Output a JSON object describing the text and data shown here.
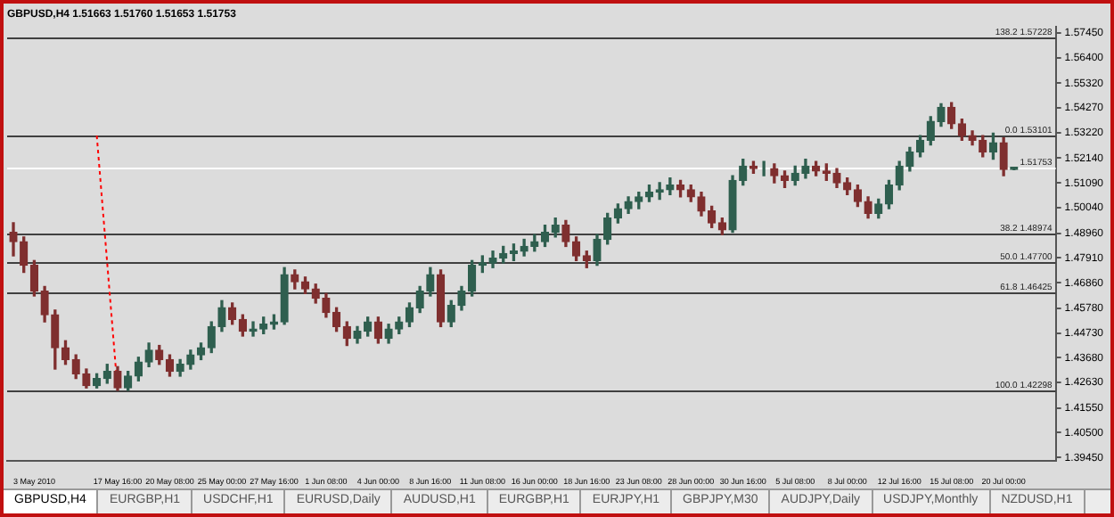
{
  "chart_data": {
    "type": "candlestick",
    "title": "GBPUSD,H4 1.51663 1.51760 1.51653 1.51753",
    "categories": [
      null,
      null,
      "3 May 2010",
      null,
      null,
      null,
      null,
      null,
      null,
      null,
      "17 May 16:00",
      null,
      null,
      null,
      null,
      "20 May 08:00",
      null,
      null,
      null,
      null,
      "25 May 00:00",
      null,
      null,
      null,
      null,
      "27 May 16:00",
      null,
      null,
      null,
      null,
      "1 Jun 08:00",
      null,
      null,
      null,
      null,
      "4 Jun 00:00",
      null,
      null,
      null,
      null,
      "8 Jun 16:00",
      null,
      null,
      null,
      null,
      "11 Jun 08:00",
      null,
      null,
      null,
      null,
      "16 Jun 00:00",
      null,
      null,
      null,
      null,
      "18 Jun 16:00",
      null,
      null,
      null,
      null,
      "23 Jun 08:00",
      null,
      null,
      null,
      null,
      "28 Jun 00:00",
      null,
      null,
      null,
      null,
      "30 Jun 16:00",
      null,
      null,
      null,
      null,
      "5 Jul 08:00",
      null,
      null,
      null,
      null,
      "8 Jul 00:00",
      null,
      null,
      null,
      null,
      "12 Jul 16:00",
      null,
      null,
      null,
      null,
      "15 Jul 08:00",
      null,
      null,
      null,
      null,
      "20 Jul 00:00",
      null
    ],
    "ohlc": [
      [
        1.49,
        1.494,
        1.48,
        1.486
      ],
      [
        1.486,
        1.488,
        1.473,
        1.476
      ],
      [
        1.476,
        1.478,
        1.463,
        1.465
      ],
      [
        1.465,
        1.467,
        1.452,
        1.455
      ],
      [
        1.455,
        1.457,
        1.432,
        1.441
      ],
      [
        1.441,
        1.444,
        1.434,
        1.436
      ],
      [
        1.436,
        1.438,
        1.428,
        1.43
      ],
      [
        1.43,
        1.432,
        1.424,
        1.425
      ],
      [
        1.425,
        1.43,
        1.424,
        1.428
      ],
      [
        1.428,
        1.434,
        1.426,
        1.431
      ],
      [
        1.431,
        1.433,
        1.423,
        1.424
      ],
      [
        1.424,
        1.431,
        1.423,
        1.429
      ],
      [
        1.429,
        1.437,
        1.427,
        1.435
      ],
      [
        1.435,
        1.443,
        1.433,
        1.44
      ],
      [
        1.44,
        1.442,
        1.434,
        1.436
      ],
      [
        1.436,
        1.438,
        1.429,
        1.431
      ],
      [
        1.431,
        1.436,
        1.429,
        1.434
      ],
      [
        1.434,
        1.44,
        1.432,
        1.438
      ],
      [
        1.438,
        1.443,
        1.436,
        1.441
      ],
      [
        1.441,
        1.452,
        1.439,
        1.45
      ],
      [
        1.45,
        1.461,
        1.448,
        1.458
      ],
      [
        1.458,
        1.46,
        1.451,
        1.453
      ],
      [
        1.453,
        1.455,
        1.446,
        1.448
      ],
      [
        1.448,
        1.452,
        1.446,
        1.449
      ],
      [
        1.449,
        1.454,
        1.447,
        1.451
      ],
      [
        1.451,
        1.455,
        1.449,
        1.452
      ],
      [
        1.452,
        1.475,
        1.451,
        1.472
      ],
      [
        1.472,
        1.474,
        1.466,
        1.469
      ],
      [
        1.469,
        1.471,
        1.464,
        1.466
      ],
      [
        1.466,
        1.468,
        1.46,
        1.462
      ],
      [
        1.462,
        1.464,
        1.454,
        1.456
      ],
      [
        1.456,
        1.458,
        1.448,
        1.45
      ],
      [
        1.45,
        1.452,
        1.442,
        1.445
      ],
      [
        1.445,
        1.45,
        1.443,
        1.448
      ],
      [
        1.448,
        1.454,
        1.446,
        1.452
      ],
      [
        1.452,
        1.454,
        1.443,
        1.445
      ],
      [
        1.445,
        1.451,
        1.443,
        1.449
      ],
      [
        1.449,
        1.454,
        1.447,
        1.452
      ],
      [
        1.452,
        1.46,
        1.45,
        1.458
      ],
      [
        1.458,
        1.467,
        1.456,
        1.465
      ],
      [
        1.465,
        1.475,
        1.463,
        1.472
      ],
      [
        1.472,
        1.474,
        1.45,
        1.452
      ],
      [
        1.452,
        1.461,
        1.45,
        1.459
      ],
      [
        1.459,
        1.467,
        1.457,
        1.465
      ],
      [
        1.465,
        1.478,
        1.463,
        1.476
      ],
      [
        1.476,
        1.48,
        1.473,
        1.477
      ],
      [
        1.477,
        1.482,
        1.475,
        1.479
      ],
      [
        1.479,
        1.484,
        1.477,
        1.481
      ],
      [
        1.481,
        1.485,
        1.478,
        1.482
      ],
      [
        1.482,
        1.487,
        1.48,
        1.484
      ],
      [
        1.484,
        1.489,
        1.482,
        1.486
      ],
      [
        1.486,
        1.493,
        1.484,
        1.49
      ],
      [
        1.49,
        1.496,
        1.488,
        1.493
      ],
      [
        1.493,
        1.495,
        1.484,
        1.486
      ],
      [
        1.486,
        1.488,
        1.478,
        1.48
      ],
      [
        1.48,
        1.482,
        1.475,
        1.478
      ],
      [
        1.478,
        1.489,
        1.476,
        1.487
      ],
      [
        1.487,
        1.498,
        1.485,
        1.496
      ],
      [
        1.496,
        1.502,
        1.494,
        1.5
      ],
      [
        1.5,
        1.505,
        1.498,
        1.503
      ],
      [
        1.503,
        1.507,
        1.5,
        1.505
      ],
      [
        1.505,
        1.51,
        1.503,
        1.507
      ],
      [
        1.507,
        1.511,
        1.504,
        1.508
      ],
      [
        1.508,
        1.513,
        1.506,
        1.51
      ],
      [
        1.51,
        1.512,
        1.505,
        1.508
      ],
      [
        1.508,
        1.51,
        1.503,
        1.505
      ],
      [
        1.505,
        1.507,
        1.497,
        1.499
      ],
      [
        1.499,
        1.501,
        1.492,
        1.494
      ],
      [
        1.494,
        1.496,
        1.489,
        1.491
      ],
      [
        1.491,
        1.514,
        1.49,
        1.512
      ],
      [
        1.512,
        1.521,
        1.51,
        1.518
      ],
      [
        1.518,
        1.52,
        1.515,
        1.517
      ],
      [
        1.517,
        1.52,
        1.514,
        1.517
      ],
      [
        1.517,
        1.519,
        1.511,
        1.514
      ],
      [
        1.514,
        1.516,
        1.509,
        1.512
      ],
      [
        1.512,
        1.518,
        1.51,
        1.515
      ],
      [
        1.515,
        1.521,
        1.513,
        1.518
      ],
      [
        1.518,
        1.52,
        1.514,
        1.516
      ],
      [
        1.516,
        1.519,
        1.512,
        1.515
      ],
      [
        1.515,
        1.517,
        1.509,
        1.511
      ],
      [
        1.511,
        1.513,
        1.506,
        1.508
      ],
      [
        1.508,
        1.51,
        1.501,
        1.503
      ],
      [
        1.503,
        1.505,
        1.496,
        1.498
      ],
      [
        1.498,
        1.504,
        1.496,
        1.502
      ],
      [
        1.502,
        1.512,
        1.5,
        1.51
      ],
      [
        1.51,
        1.52,
        1.508,
        1.518
      ],
      [
        1.518,
        1.526,
        1.516,
        1.524
      ],
      [
        1.524,
        1.531,
        1.522,
        1.529
      ],
      [
        1.529,
        1.539,
        1.527,
        1.537
      ],
      [
        1.537,
        1.5445,
        1.535,
        1.543
      ],
      [
        1.543,
        1.545,
        1.534,
        1.536
      ],
      [
        1.536,
        1.538,
        1.529,
        1.531
      ],
      [
        1.531,
        1.533,
        1.527,
        1.529
      ],
      [
        1.529,
        1.531,
        1.522,
        1.524
      ],
      [
        1.524,
        1.532,
        1.521,
        1.528
      ],
      [
        1.528,
        1.53,
        1.514,
        1.5166
      ],
      [
        1.51663,
        1.5176,
        1.51653,
        1.51753
      ]
    ],
    "colors": [
      "#7f2f2f",
      "#7f2f2f",
      "#7f2f2f",
      "#7f2f2f",
      "#7f2f2f",
      "#7f2f2f",
      "#7f2f2f",
      "#7f2f2f",
      "#2f5f4f",
      "#2f5f4f",
      "#7f2f2f",
      "#2f5f4f",
      "#2f5f4f",
      "#2f5f4f",
      "#7f2f2f",
      "#7f2f2f",
      "#2f5f4f",
      "#2f5f4f",
      "#2f5f4f",
      "#2f5f4f",
      "#2f5f4f",
      "#7f2f2f",
      "#7f2f2f",
      "#2f5f4f",
      "#2f5f4f",
      "#2f5f4f",
      "#2f5f4f",
      "#7f2f2f",
      "#7f2f2f",
      "#7f2f2f",
      "#7f2f2f",
      "#7f2f2f",
      "#7f2f2f",
      "#2f5f4f",
      "#2f5f4f",
      "#7f2f2f",
      "#2f5f4f",
      "#2f5f4f",
      "#2f5f4f",
      "#2f5f4f",
      "#2f5f4f",
      "#7f2f2f",
      "#2f5f4f",
      "#2f5f4f",
      "#2f5f4f",
      "#2f5f4f",
      "#2f5f4f",
      "#2f5f4f",
      "#2f5f4f",
      "#2f5f4f",
      "#2f5f4f",
      "#2f5f4f",
      "#2f5f4f",
      "#7f2f2f",
      "#7f2f2f",
      "#7f2f2f",
      "#2f5f4f",
      "#2f5f4f",
      "#2f5f4f",
      "#2f5f4f",
      "#2f5f4f",
      "#2f5f4f",
      "#2f5f4f",
      "#2f5f4f",
      "#7f2f2f",
      "#7f2f2f",
      "#7f2f2f",
      "#7f2f2f",
      "#7f2f2f",
      "#2f5f4f",
      "#2f5f4f",
      "#7f2f2f",
      "#2f5f4f",
      "#7f2f2f",
      "#7f2f2f",
      "#2f5f4f",
      "#2f5f4f",
      "#7f2f2f",
      "#7f2f2f",
      "#7f2f2f",
      "#7f2f2f",
      "#7f2f2f",
      "#7f2f2f",
      "#2f5f4f",
      "#2f5f4f",
      "#2f5f4f",
      "#2f5f4f",
      "#2f5f4f",
      "#2f5f4f",
      "#2f5f4f",
      "#7f2f2f",
      "#7f2f2f",
      "#7f2f2f",
      "#7f2f2f",
      "#2f5f4f",
      "#7f2f2f",
      "#2f5f4f"
    ],
    "series": [
      {
        "type": "line",
        "color": "#ff0000",
        "line_style": "dotted",
        "values": [
          null,
          null,
          null,
          null,
          null,
          null,
          null,
          null,
          1.531,
          null,
          1.423,
          null,
          null,
          null,
          null,
          null,
          null,
          null,
          null,
          null,
          null,
          null,
          null,
          null,
          null,
          null,
          null,
          null,
          null,
          null,
          null,
          null,
          null,
          null,
          null,
          null,
          null,
          null,
          null,
          null,
          null,
          null,
          null,
          null,
          null,
          null,
          null,
          null,
          null,
          null,
          null,
          null,
          null,
          null,
          null,
          null,
          null,
          null,
          null,
          null,
          null,
          null,
          null,
          null,
          null,
          null,
          null,
          null,
          null,
          null,
          null,
          null,
          null,
          null,
          null,
          null,
          null,
          null,
          null,
          null,
          null,
          null,
          null,
          null,
          null,
          null,
          null,
          null,
          null,
          null,
          null,
          null,
          null,
          null,
          null,
          null,
          null
        ]
      }
    ],
    "ylim": [
      1.393,
      1.577
    ],
    "yticks": [
      {
        "value": 1.5745,
        "label": "1.57450"
      },
      {
        "value": 1.564,
        "label": "1.56400"
      },
      {
        "value": 1.5532,
        "label": "1.55320"
      },
      {
        "value": 1.5427,
        "label": "1.54270"
      },
      {
        "value": 1.5322,
        "label": "1.53220"
      },
      {
        "value": 1.5214,
        "label": "1.52140"
      },
      {
        "value": 1.5109,
        "label": "1.51090"
      },
      {
        "value": 1.5004,
        "label": "1.50040"
      },
      {
        "value": 1.4896,
        "label": "1.48960"
      },
      {
        "value": 1.4791,
        "label": "1.47910"
      },
      {
        "value": 1.4686,
        "label": "1.46860"
      },
      {
        "value": 1.4578,
        "label": "1.45780"
      },
      {
        "value": 1.4473,
        "label": "1.44730"
      },
      {
        "value": 1.4368,
        "label": "1.43680"
      },
      {
        "value": 1.4263,
        "label": "1.42630"
      },
      {
        "value": 1.4155,
        "label": "1.41550"
      },
      {
        "value": 1.405,
        "label": "1.40500"
      },
      {
        "value": 1.3945,
        "label": "1.39450"
      }
    ],
    "ref_lines": [
      {
        "axis": "y",
        "value": 1.57228,
        "label": "138.2 1.57228",
        "color": "#404040"
      },
      {
        "axis": "y",
        "value": 1.53101,
        "label": "0.0 1.53101",
        "color": "#404040"
      },
      {
        "axis": "y",
        "value": 1.48974,
        "label": "38.2 1.48974",
        "color": "#404040"
      },
      {
        "axis": "y",
        "value": 1.477,
        "label": "50.0 1.47700",
        "color": "#404040"
      },
      {
        "axis": "y",
        "value": 1.46425,
        "label": "61.8 1.46425",
        "color": "#404040"
      },
      {
        "axis": "y",
        "value": 1.42298,
        "label": "100.0 1.42298",
        "color": "#404040"
      },
      {
        "axis": "y",
        "value": 1.51753,
        "label": "1.51753",
        "color": "#ffffff"
      }
    ],
    "grid": false,
    "legend": false,
    "annotations": [
      "GBPUSD,H4",
      "EURGBP,H1",
      "USDCHF,H1",
      "EURUSD,Daily",
      "AUDUSD,H1",
      "EURGBP,H1",
      "EURJPY,H1",
      "GBPJPY,M30",
      "AUDJPY,Daily",
      "USDJPY,Monthly",
      "NZDUSD,H1"
    ]
  }
}
